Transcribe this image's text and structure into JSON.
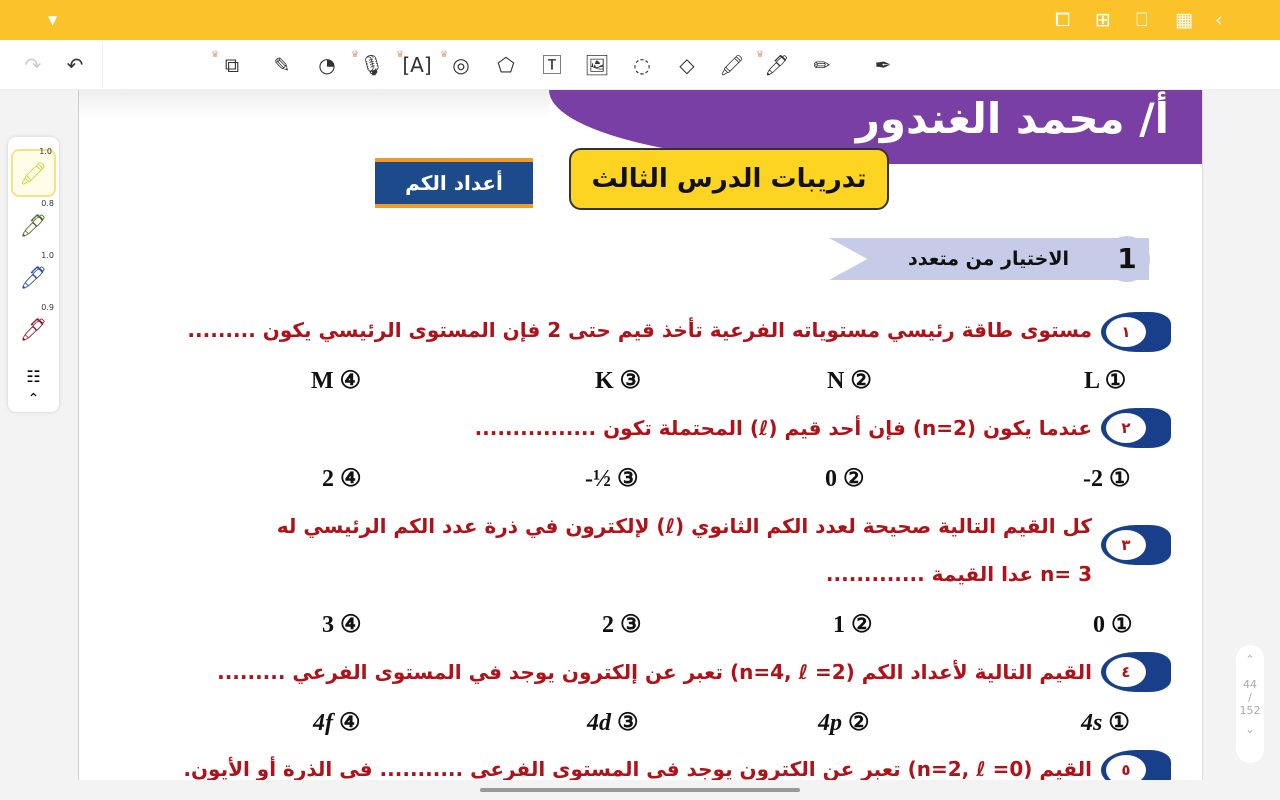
{
  "topbar": {
    "color": "#fcc22a",
    "icons": [
      "dropdown-icon",
      "crop-icon",
      "add-page-icon",
      "bookmark-icon",
      "grid-icon",
      "back-icon"
    ]
  },
  "toolbar": {
    "redo": "↷",
    "undo": "↶",
    "tools": [
      "translate-icon",
      "laser-icon",
      "sticker-icon",
      "microphone-icon",
      "ocr-icon",
      "tape-icon",
      "shape-icon",
      "text-icon",
      "image-icon",
      "lasso-icon",
      "eraser-icon",
      "highlighter-icon",
      "pen-icon",
      "pencil-icon",
      "fountain-pen-icon"
    ]
  },
  "pens": [
    {
      "label": "1.0",
      "color": "#c7d83a"
    },
    {
      "label": "0.8",
      "color": "#4f6b2a"
    },
    {
      "label": "1.0",
      "color": "#2d4fa8"
    },
    {
      "label": "0.9",
      "color": "#8a2030"
    }
  ],
  "page": {
    "author": "أ/ محمد الغندور",
    "lesson": "تدريبات الدرس الثالث",
    "topic": "أعداد الكم",
    "section_num": "1",
    "section": "الاختيار من متعدد",
    "questions": [
      {
        "num": "١",
        "text": "مستوى طاقة رئيسي مستوياته الفرعية تأخذ قيم حتى 2 فإن المستوى الرئيسي يكون .........",
        "options": [
          "L",
          "N",
          "K",
          "M"
        ]
      },
      {
        "num": "٢",
        "text": "عندما يكون (n=2) فإن أحد قيم (ℓ) المحتملة تكون ................",
        "options": [
          "-2",
          "0",
          "-½",
          "2"
        ]
      },
      {
        "num": "٣",
        "text": "كل القيم التالية صحيحة لعدد الكم الثانوي (ℓ) لإلكترون في ذرة عدد الكم الرئيسي له",
        "text2": "n= 3 عدا القيمة .............",
        "options": [
          "0",
          "1",
          "2",
          "3"
        ]
      },
      {
        "num": "٤",
        "text": "القيم التالية لأعداد الكم (n=4, ℓ =2) تعبر عن إلكترون يوجد في المستوى الفرعي .........",
        "options": [
          "4s",
          "4p",
          "4d",
          "4f"
        ]
      },
      {
        "num": "٥",
        "text": "القيم (n=2, ℓ =0) تعبر عن الكترون يوجد فى المستوى الفرعى ........... فى الذرة أو الأيون."
      }
    ],
    "markers": [
      "①",
      "②",
      "③",
      "④"
    ]
  },
  "pager": {
    "current": "44",
    "sep": "/",
    "total": "152"
  }
}
